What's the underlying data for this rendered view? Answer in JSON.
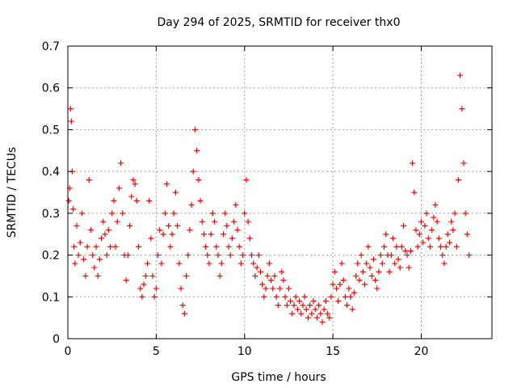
{
  "chart_data": {
    "type": "scatter",
    "title": "Day 294 of 2025, SRMTID for receiver thx0",
    "xlabel": "GPS time / hours",
    "ylabel": "SRMTID / TECUs",
    "xlim": [
      0,
      24
    ],
    "ylim": [
      0,
      0.7
    ],
    "xticks": [
      0,
      5,
      10,
      15,
      20
    ],
    "xtick_labels": [
      "0",
      "5",
      "10",
      "15",
      "20"
    ],
    "yticks": [
      0,
      0.1,
      0.2,
      0.3,
      0.4,
      0.5,
      0.6,
      0.7
    ],
    "ytick_labels": [
      "0",
      "0.1",
      "0.2",
      "0.3",
      "0.4",
      "0.5",
      "0.6",
      "0.7"
    ],
    "grid": true,
    "marker": "+",
    "series": [
      {
        "name": "SRMTID",
        "color": "#ff0000",
        "x": [
          0.05,
          0.1,
          0.15,
          0.2,
          0.25,
          0.3,
          0.35,
          0.4,
          0.5,
          0.6,
          0.7,
          0.8,
          0.9,
          1.0,
          1.1,
          1.2,
          1.3,
          1.4,
          1.5,
          1.6,
          1.7,
          1.8,
          1.9,
          2.0,
          2.1,
          2.2,
          2.3,
          2.4,
          2.5,
          2.6,
          2.7,
          2.8,
          2.9,
          3.0,
          3.1,
          3.2,
          3.3,
          3.4,
          3.5,
          3.6,
          3.7,
          3.8,
          3.9,
          4.0,
          4.1,
          4.2,
          4.3,
          4.4,
          4.5,
          4.6,
          4.7,
          4.8,
          4.9,
          5.0,
          5.1,
          5.2,
          5.3,
          5.4,
          5.5,
          5.6,
          5.7,
          5.8,
          5.9,
          6.0,
          6.1,
          6.2,
          6.3,
          6.4,
          6.5,
          6.6,
          6.7,
          6.8,
          6.9,
          7.0,
          7.1,
          7.2,
          7.3,
          7.4,
          7.5,
          7.6,
          7.7,
          7.8,
          7.9,
          8.0,
          8.1,
          8.2,
          8.3,
          8.4,
          8.5,
          8.6,
          8.7,
          8.8,
          8.9,
          9.0,
          9.1,
          9.2,
          9.3,
          9.4,
          9.5,
          9.6,
          9.7,
          9.8,
          9.9,
          10.0,
          10.1,
          10.2,
          10.3,
          10.4,
          10.5,
          10.6,
          10.7,
          10.8,
          10.9,
          11.0,
          11.1,
          11.2,
          11.3,
          11.4,
          11.5,
          11.6,
          11.7,
          11.8,
          11.9,
          12.0,
          12.1,
          12.2,
          12.3,
          12.4,
          12.5,
          12.6,
          12.7,
          12.8,
          12.9,
          13.0,
          13.1,
          13.2,
          13.3,
          13.4,
          13.5,
          13.6,
          13.7,
          13.8,
          13.9,
          14.0,
          14.1,
          14.2,
          14.3,
          14.4,
          14.5,
          14.6,
          14.7,
          14.8,
          14.9,
          15.0,
          15.1,
          15.2,
          15.3,
          15.4,
          15.5,
          15.6,
          15.7,
          15.8,
          15.9,
          16.0,
          16.1,
          16.2,
          16.3,
          16.4,
          16.5,
          16.6,
          16.7,
          16.8,
          16.9,
          17.0,
          17.1,
          17.2,
          17.3,
          17.4,
          17.5,
          17.6,
          17.7,
          17.8,
          17.9,
          18.0,
          18.1,
          18.2,
          18.3,
          18.4,
          18.5,
          18.6,
          18.7,
          18.8,
          18.9,
          19.0,
          19.1,
          19.2,
          19.3,
          19.4,
          19.5,
          19.6,
          19.7,
          19.8,
          19.9,
          20.0,
          20.1,
          20.2,
          20.3,
          20.4,
          20.5,
          20.6,
          20.7,
          20.8,
          20.9,
          21.0,
          21.1,
          21.2,
          21.3,
          21.4,
          21.5,
          21.6,
          21.7,
          21.8,
          21.9,
          22.0,
          22.1,
          22.2,
          22.3,
          22.4,
          22.5,
          22.6,
          22.7
        ],
        "y": [
          0.33,
          0.36,
          0.55,
          0.52,
          0.4,
          0.31,
          0.22,
          0.18,
          0.27,
          0.2,
          0.23,
          0.3,
          0.19,
          0.15,
          0.22,
          0.38,
          0.26,
          0.2,
          0.17,
          0.22,
          0.15,
          0.19,
          0.24,
          0.28,
          0.25,
          0.2,
          0.26,
          0.22,
          0.3,
          0.33,
          0.22,
          0.28,
          0.36,
          0.42,
          0.3,
          0.2,
          0.14,
          0.2,
          0.27,
          0.34,
          0.38,
          0.37,
          0.33,
          0.22,
          0.12,
          0.1,
          0.13,
          0.15,
          0.18,
          0.33,
          0.24,
          0.15,
          0.1,
          0.12,
          0.2,
          0.26,
          0.18,
          0.25,
          0.3,
          0.37,
          0.27,
          0.22,
          0.25,
          0.3,
          0.35,
          0.27,
          0.18,
          0.12,
          0.08,
          0.06,
          0.15,
          0.2,
          0.26,
          0.32,
          0.4,
          0.5,
          0.45,
          0.38,
          0.33,
          0.28,
          0.25,
          0.22,
          0.2,
          0.18,
          0.25,
          0.3,
          0.28,
          0.22,
          0.2,
          0.15,
          0.18,
          0.25,
          0.3,
          0.27,
          0.22,
          0.2,
          0.24,
          0.28,
          0.32,
          0.26,
          0.22,
          0.18,
          0.2,
          0.3,
          0.38,
          0.28,
          0.24,
          0.2,
          0.18,
          0.15,
          0.17,
          0.2,
          0.16,
          0.13,
          0.1,
          0.12,
          0.15,
          0.18,
          0.14,
          0.12,
          0.15,
          0.1,
          0.08,
          0.12,
          0.16,
          0.14,
          0.1,
          0.08,
          0.12,
          0.09,
          0.06,
          0.08,
          0.1,
          0.07,
          0.09,
          0.06,
          0.08,
          0.1,
          0.07,
          0.05,
          0.08,
          0.06,
          0.09,
          0.07,
          0.05,
          0.08,
          0.06,
          0.04,
          0.07,
          0.09,
          0.06,
          0.05,
          0.1,
          0.13,
          0.16,
          0.12,
          0.09,
          0.13,
          0.18,
          0.14,
          0.1,
          0.08,
          0.12,
          0.1,
          0.07,
          0.11,
          0.15,
          0.18,
          0.14,
          0.2,
          0.16,
          0.13,
          0.18,
          0.22,
          0.17,
          0.15,
          0.19,
          0.14,
          0.12,
          0.16,
          0.2,
          0.18,
          0.22,
          0.25,
          0.2,
          0.16,
          0.2,
          0.24,
          0.18,
          0.22,
          0.19,
          0.17,
          0.22,
          0.27,
          0.21,
          0.2,
          0.17,
          0.21,
          0.42,
          0.35,
          0.26,
          0.22,
          0.25,
          0.28,
          0.23,
          0.27,
          0.3,
          0.24,
          0.22,
          0.26,
          0.29,
          0.32,
          0.28,
          0.24,
          0.22,
          0.2,
          0.18,
          0.22,
          0.25,
          0.23,
          0.28,
          0.26,
          0.3,
          0.22,
          0.38,
          0.63,
          0.55,
          0.42,
          0.3,
          0.25,
          0.2
        ]
      }
    ]
  }
}
